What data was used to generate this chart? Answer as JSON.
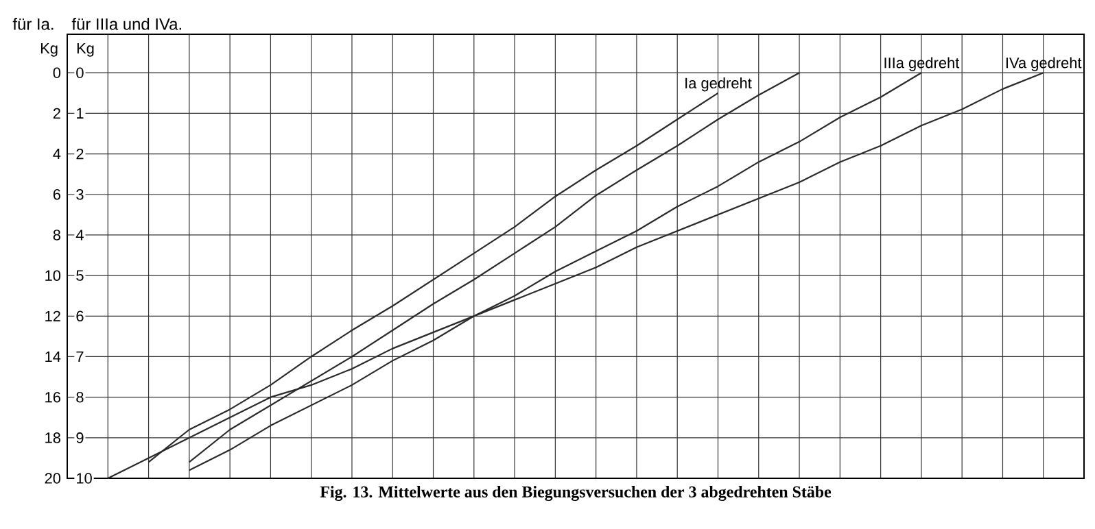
{
  "chart_data": {
    "type": "line",
    "title": "Fig. 13.  Mittelwerte aus den Biegungsversuchen der 3 abgedrehten Stäbe",
    "ylabel": "Kg",
    "y2label": "Kg",
    "annotations": [
      "für Ia.",
      "für IIIa und IVa."
    ],
    "categories": [
      null,
      null,
      null,
      null,
      null,
      null,
      null,
      null,
      null,
      null,
      null,
      null,
      null,
      null,
      null,
      null,
      null,
      null,
      null,
      null,
      null,
      null,
      null,
      null,
      null,
      null
    ],
    "ylim": [
      20,
      -1.9
    ],
    "yticks": [
      0,
      2,
      4,
      6,
      8,
      10,
      12,
      14,
      16,
      18,
      20
    ],
    "y2lim": [
      10,
      -0.95
    ],
    "y2ticks": [
      0,
      1,
      2,
      3,
      4,
      5,
      6,
      7,
      8,
      9,
      10
    ],
    "grid": true,
    "marker": "none",
    "line_style": "solid",
    "series": [
      {
        "name": "Ia gedreht",
        "color": "#2a2a2a",
        "axis": "y",
        "values": [
          null,
          null,
          19.2,
          17.6,
          16.6,
          15.4,
          14,
          12.7,
          11.5,
          10.2,
          8.9,
          7.6,
          6.1,
          4.8,
          3.6,
          2.3,
          1.0,
          null,
          null,
          null,
          null,
          null,
          null,
          null,
          null,
          null
        ]
      },
      {
        "color": "#2a2a2a",
        "axis": "y",
        "values": [
          null,
          null,
          null,
          19.2,
          17.6,
          16.4,
          15.2,
          14,
          12.7,
          11.4,
          10.2,
          8.9,
          7.6,
          6.05,
          4.8,
          3.6,
          2.3,
          1.1,
          0,
          null,
          null,
          null,
          null,
          null,
          null,
          null
        ]
      },
      {
        "name": "IIIa gedreht",
        "color": "#2a2a2a",
        "axis": "y2",
        "values": [
          null,
          null,
          null,
          9.8,
          9.3,
          8.7,
          8.2,
          7.7,
          7.1,
          6.6,
          6.0,
          5.5,
          4.9,
          4.4,
          3.9,
          3.3,
          2.8,
          2.2,
          1.7,
          1.1,
          0.6,
          0,
          null,
          null,
          null,
          null
        ]
      },
      {
        "name": "IVa gedreht",
        "color": "#2a2a2a",
        "axis": "y2",
        "values": [
          null,
          10,
          9.5,
          9.0,
          8.5,
          8.0,
          7.7,
          7.3,
          6.8,
          6.4,
          6.0,
          5.6,
          5.2,
          4.8,
          4.3,
          3.9,
          3.5,
          3.1,
          2.7,
          2.2,
          1.8,
          1.3,
          0.9,
          0.4,
          0,
          null
        ]
      }
    ]
  }
}
